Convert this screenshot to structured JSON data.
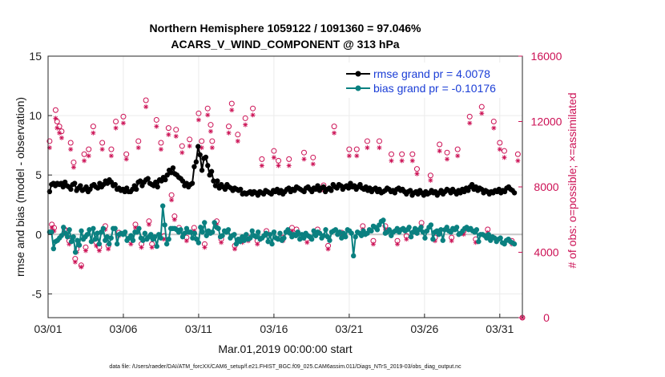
{
  "chart_data": {
    "type": "line",
    "title": "Northern Hemisphere 1059122 / 1091360 = 97.046%",
    "subtitle": "ACARS_V_WIND_COMPONENT @ 313 hPa",
    "xlabel": "Mar.01,2019 00:00:00 start",
    "ylabel": "rmse and bias (model - observation)",
    "ylabel_right": "# of obs: o=possible; ×=assimilated",
    "x_ticks": [
      "03/01",
      "03/06",
      "03/11",
      "03/16",
      "03/21",
      "03/26",
      "03/31"
    ],
    "y_ticks": [
      "15",
      "10",
      "5",
      "0",
      "-5"
    ],
    "y_right_ticks": [
      "16000",
      "12000",
      "8000",
      "4000",
      "0"
    ],
    "ylim": [
      -7,
      15
    ],
    "ylim_right": [
      0,
      16000
    ],
    "xlim": [
      0,
      31.5
    ],
    "legend": [
      "rmse grand pr = 4.0078",
      "bias grand pr = -0.10176"
    ],
    "footnote": "data file: /Users/raeder/DAI/ATM_forcXX/CAM6_setup/f.e21.FHIST_BGC.f09_025.CAM6assim.011/Diags_NTrS_2019-03/obs_diag_output.nc",
    "colors": {
      "rmse": "#000000",
      "bias": "#0a8080",
      "obs": "#cc1155",
      "zero_line": "#c8c8c8",
      "grid": "#ebebeb"
    },
    "series": [
      {
        "name": "rmse",
        "values": [
          3.6,
          4.2,
          4.3,
          4.1,
          4.3,
          4.2,
          4.3,
          4.0,
          4.4,
          4.1,
          4.0,
          3.8,
          4.2,
          4.3,
          3.7,
          3.9,
          4.1,
          3.7,
          3.8,
          4.0,
          3.6,
          3.8,
          4.1,
          4.2,
          4.0,
          3.9,
          4.3,
          4.0,
          4.2,
          4.5,
          4.3,
          4.6,
          4.4,
          4.1,
          4.2,
          3.8,
          3.9,
          3.7,
          3.8,
          3.6,
          3.9,
          3.6,
          3.6,
          3.8,
          4.1,
          3.8,
          4.4,
          4.5,
          4.1,
          4.4,
          4.6,
          4.7,
          4.3,
          4.2,
          4.1,
          4.4,
          4.0,
          4.6,
          4.5,
          4.8,
          4.6,
          5.0,
          5.4,
          5.2,
          5.6,
          5.1,
          5.0,
          4.8,
          4.7,
          4.5,
          4.1,
          4.3,
          4.0,
          4.2,
          4.3,
          5.7,
          6.1,
          7.4,
          6.7,
          5.4,
          6.4,
          6.5,
          5.8,
          5.0,
          5.3,
          4.5,
          4.1,
          4.5,
          3.9,
          4.2,
          4.0,
          3.8,
          4.2,
          4.0,
          3.9,
          3.7,
          3.9,
          3.8,
          3.7,
          3.8,
          3.4,
          3.5,
          3.4,
          3.5,
          3.6,
          3.4,
          3.6,
          3.5,
          3.3,
          3.6,
          3.5,
          3.4,
          3.7,
          3.6,
          3.5,
          3.4,
          3.7,
          3.6,
          3.8,
          3.5,
          3.7,
          3.4,
          3.6,
          3.8,
          3.9,
          3.6,
          3.8,
          3.7,
          4.0,
          3.9,
          3.8,
          3.7,
          3.6,
          3.9,
          4.0,
          3.8,
          3.6,
          3.9,
          3.8,
          4.1,
          3.7,
          3.9,
          4.0,
          3.6,
          3.8,
          3.9,
          3.7,
          4.2,
          4.0,
          3.9,
          4.2,
          4.1,
          3.8,
          4.0,
          4.1,
          3.9,
          4.3,
          4.0,
          4.1,
          3.8,
          4.0,
          4.2,
          3.9,
          3.8,
          4.0,
          3.7,
          3.9,
          3.6,
          3.8,
          3.9,
          3.6,
          3.8,
          3.5,
          3.6,
          3.7,
          3.9,
          3.8,
          3.6,
          3.7,
          3.5,
          3.8,
          3.9,
          3.7,
          3.8,
          3.6,
          3.4,
          3.6,
          3.7,
          3.3,
          3.5,
          3.6,
          3.4,
          3.7,
          3.5,
          3.3,
          3.6,
          3.4,
          3.5,
          3.7,
          3.5,
          3.6,
          3.3,
          3.5,
          3.7,
          3.4,
          3.6,
          3.8,
          3.7,
          3.5,
          3.8,
          3.6,
          3.4,
          3.7,
          3.5,
          3.8,
          3.6,
          3.9,
          3.7,
          4.0,
          4.2,
          3.8,
          4.0,
          3.7,
          3.9,
          3.8,
          3.5,
          3.7,
          3.6,
          3.4,
          3.6,
          3.5,
          3.7,
          3.6,
          3.8,
          3.5,
          3.7,
          3.6,
          3.9,
          4.0,
          3.8,
          3.7,
          3.5
        ]
      },
      {
        "name": "bias",
        "values": [
          0.2,
          0.2,
          -1.2,
          -0.6,
          -0.5,
          -0.3,
          -0.1,
          0.6,
          0.1,
          -0.2,
          0.4,
          -0.6,
          -0.2,
          -1.5,
          -0.5,
          -0.9,
          0.3,
          -0.4,
          -0.2,
          0.0,
          0.4,
          -0.6,
          0.5,
          -0.4,
          0.1,
          -0.8,
          0.2,
          0.5,
          -0.5,
          -0.2,
          -0.8,
          -0.3,
          0.5,
          0.5,
          -0.8,
          0.0,
          0.1,
          0.0,
          0.2,
          -0.5,
          -0.3,
          -0.1,
          -0.5,
          0.2,
          0.2,
          0.5,
          -0.3,
          -0.5,
          0.1,
          -0.4,
          -0.2,
          0.0,
          -0.4,
          -0.2,
          -1.0,
          0.0,
          -0.3,
          2.4,
          0.8,
          -0.8,
          -0.4,
          0.5,
          0.5,
          0.5,
          0.4,
          0.2,
          0.4,
          -0.2,
          0.1,
          0.5,
          0.2,
          0.2,
          -0.3,
          0.1,
          -0.4,
          -0.7,
          0.6,
          0.2,
          1.0,
          -0.1,
          0.3,
          0.1,
          0.2,
          1.0,
          0.6,
          0.5,
          -0.2,
          -0.1,
          0.3,
          0.2,
          0.4,
          -0.3,
          -0.1,
          0.0,
          -0.8,
          -0.4,
          -0.6,
          -0.2,
          -0.5,
          0.0,
          -0.4,
          -0.3,
          0.3,
          -0.1,
          -0.2,
          0.2,
          -0.4,
          -0.3,
          -0.1,
          0.1,
          -0.6,
          0.0,
          -0.8,
          0.2,
          -0.3,
          -0.4,
          0.1,
          -0.5,
          -0.3,
          0.2,
          0.4,
          0.1,
          -0.2,
          0.0,
          -0.1,
          0.2,
          -0.4,
          0.0,
          -0.3,
          0.1,
          -0.1,
          -0.2,
          -0.4,
          0.3,
          -0.1,
          0.2,
          0.1,
          -0.3,
          -0.1,
          0.4,
          -0.2,
          -0.5,
          0.2,
          0.3,
          0.4,
          0.0,
          0.2,
          -0.3,
          0.1,
          -0.2,
          0.4,
          0.3,
          0.1,
          -1.8,
          -0.2,
          0.2,
          0.1,
          -0.1,
          0.3,
          0.0,
          0.1,
          0.4,
          0.3,
          0.7,
          0.6,
          0.4,
          0.8,
          1.1,
          1.2,
          0.1,
          0.2,
          0.4,
          -0.1,
          0.2,
          0.3,
          0.5,
          0.2,
          0.4,
          0.5,
          0.3,
          0.4,
          0.6,
          -0.2,
          0.2,
          0.5,
          0.1,
          0.4,
          0.6,
          0.2,
          -0.3,
          0.3,
          0.6,
          0.8,
          -0.4,
          0.2,
          0.3,
          0.0,
          0.4,
          -0.5,
          0.4,
          0.6,
          0.3,
          0.2,
          0.5,
          0.4,
          0.6,
          0.0,
          0.1,
          0.3,
          0.5,
          0.6,
          0.4,
          0.5,
          0.3,
          0.2,
          0.4,
          -0.6,
          0.0,
          0.0,
          -0.1,
          -0.3,
          0.0,
          -0.5,
          -0.2,
          -0.3,
          -0.6,
          -0.4,
          -0.3,
          -0.7,
          -0.8,
          -0.5,
          -0.4,
          -0.6,
          -0.7,
          -0.8
        ]
      }
    ],
    "obs_possible": [
      [
        0.1,
        10800
      ],
      [
        0.25,
        5700
      ],
      [
        0.4,
        5500
      ],
      [
        0.5,
        12700
      ],
      [
        0.6,
        12000
      ],
      [
        0.75,
        11700
      ],
      [
        0.9,
        11400
      ],
      [
        1.1,
        5400
      ],
      [
        1.2,
        5300
      ],
      [
        1.4,
        4700
      ],
      [
        1.5,
        10700
      ],
      [
        1.7,
        9500
      ],
      [
        1.8,
        3600
      ],
      [
        1.9,
        4200
      ],
      [
        2.2,
        3200
      ],
      [
        2.4,
        10000
      ],
      [
        2.5,
        4300
      ],
      [
        2.7,
        10300
      ],
      [
        3.0,
        11700
      ],
      [
        3.2,
        4600
      ],
      [
        3.4,
        4300
      ],
      [
        3.6,
        10700
      ],
      [
        3.8,
        5600
      ],
      [
        4.0,
        4400
      ],
      [
        4.2,
        10300
      ],
      [
        4.5,
        12000
      ],
      [
        4.7,
        5200
      ],
      [
        5.0,
        12300
      ],
      [
        5.2,
        10000
      ],
      [
        5.5,
        4700
      ],
      [
        5.8,
        5700
      ],
      [
        6.0,
        10800
      ],
      [
        6.2,
        4500
      ],
      [
        6.5,
        13300
      ],
      [
        6.7,
        5900
      ],
      [
        6.9,
        4500
      ],
      [
        7.2,
        12100
      ],
      [
        7.5,
        10700
      ],
      [
        7.7,
        5000
      ],
      [
        8.0,
        11600
      ],
      [
        8.2,
        7500
      ],
      [
        8.4,
        6200
      ],
      [
        8.5,
        11500
      ],
      [
        8.7,
        5500
      ],
      [
        8.9,
        10500
      ],
      [
        9.2,
        4900
      ],
      [
        9.4,
        10900
      ],
      [
        9.7,
        5500
      ],
      [
        10.0,
        12500
      ],
      [
        10.2,
        10800
      ],
      [
        10.4,
        4500
      ],
      [
        10.6,
        12800
      ],
      [
        10.8,
        11800
      ],
      [
        10.9,
        10800
      ],
      [
        11.2,
        5900
      ],
      [
        11.5,
        4800
      ],
      [
        12.0,
        11700
      ],
      [
        12.2,
        13100
      ],
      [
        12.4,
        4400
      ],
      [
        12.6,
        11200
      ],
      [
        12.9,
        4800
      ],
      [
        13.1,
        12200
      ],
      [
        13.3,
        4900
      ],
      [
        13.6,
        12800
      ],
      [
        13.9,
        4700
      ],
      [
        14.2,
        9700
      ],
      [
        14.5,
        5300
      ],
      [
        15.0,
        10200
      ],
      [
        15.3,
        9600
      ],
      [
        15.6,
        4900
      ],
      [
        16.0,
        9700
      ],
      [
        16.2,
        5500
      ],
      [
        16.5,
        5400
      ],
      [
        17.0,
        10100
      ],
      [
        17.2,
        4800
      ],
      [
        17.6,
        9800
      ],
      [
        17.9,
        5400
      ],
      [
        18.3,
        8100
      ],
      [
        18.6,
        4400
      ],
      [
        19.0,
        11700
      ],
      [
        19.5,
        5200
      ],
      [
        20.0,
        10300
      ],
      [
        20.5,
        10300
      ],
      [
        20.9,
        5600
      ],
      [
        21.2,
        10800
      ],
      [
        21.6,
        4700
      ],
      [
        22.0,
        10800
      ],
      [
        22.4,
        5600
      ],
      [
        22.8,
        10000
      ],
      [
        23.2,
        4700
      ],
      [
        23.5,
        10000
      ],
      [
        23.8,
        5000
      ],
      [
        24.2,
        10000
      ],
      [
        24.5,
        9100
      ],
      [
        24.8,
        5800
      ],
      [
        25.4,
        8700
      ],
      [
        25.7,
        4900
      ],
      [
        26.0,
        10600
      ],
      [
        26.5,
        10100
      ],
      [
        26.8,
        4900
      ],
      [
        27.2,
        10300
      ],
      [
        27.6,
        5300
      ],
      [
        28.0,
        12300
      ],
      [
        28.4,
        4800
      ],
      [
        28.8,
        12900
      ],
      [
        29.2,
        5400
      ],
      [
        29.6,
        12000
      ],
      [
        30.0,
        10700
      ],
      [
        30.3,
        10200
      ],
      [
        30.8,
        4700
      ],
      [
        31.2,
        10000
      ],
      [
        31.5,
        0
      ]
    ],
    "obs_assimilated": [
      [
        0.1,
        10400
      ],
      [
        0.25,
        5500
      ],
      [
        0.4,
        5300
      ],
      [
        0.5,
        12200
      ],
      [
        0.6,
        11600
      ],
      [
        0.75,
        11300
      ],
      [
        0.9,
        11000
      ],
      [
        1.1,
        5200
      ],
      [
        1.2,
        5100
      ],
      [
        1.4,
        4500
      ],
      [
        1.5,
        10300
      ],
      [
        1.7,
        9200
      ],
      [
        1.8,
        3400
      ],
      [
        1.9,
        4000
      ],
      [
        2.2,
        3100
      ],
      [
        2.4,
        9600
      ],
      [
        2.5,
        4100
      ],
      [
        2.7,
        9900
      ],
      [
        3.0,
        11300
      ],
      [
        3.2,
        4400
      ],
      [
        3.4,
        4100
      ],
      [
        3.6,
        10300
      ],
      [
        3.8,
        5400
      ],
      [
        4.0,
        4200
      ],
      [
        4.2,
        9900
      ],
      [
        4.5,
        11600
      ],
      [
        4.7,
        5000
      ],
      [
        5.0,
        11900
      ],
      [
        5.2,
        9700
      ],
      [
        5.5,
        4500
      ],
      [
        5.8,
        5500
      ],
      [
        6.0,
        10400
      ],
      [
        6.2,
        4300
      ],
      [
        6.5,
        12900
      ],
      [
        6.7,
        5700
      ],
      [
        6.9,
        4300
      ],
      [
        7.2,
        11700
      ],
      [
        7.5,
        10300
      ],
      [
        7.7,
        4800
      ],
      [
        8.0,
        11200
      ],
      [
        8.2,
        7200
      ],
      [
        8.4,
        6000
      ],
      [
        8.5,
        11100
      ],
      [
        8.7,
        5300
      ],
      [
        8.9,
        10100
      ],
      [
        9.2,
        4700
      ],
      [
        9.4,
        10500
      ],
      [
        9.7,
        5300
      ],
      [
        10.0,
        12100
      ],
      [
        10.2,
        10400
      ],
      [
        10.4,
        4300
      ],
      [
        10.6,
        12400
      ],
      [
        10.8,
        11400
      ],
      [
        10.9,
        10400
      ],
      [
        11.2,
        5700
      ],
      [
        11.5,
        4600
      ],
      [
        12.0,
        11300
      ],
      [
        12.2,
        12700
      ],
      [
        12.4,
        4200
      ],
      [
        12.6,
        10800
      ],
      [
        12.9,
        4600
      ],
      [
        13.1,
        11800
      ],
      [
        13.3,
        4700
      ],
      [
        13.6,
        12400
      ],
      [
        13.9,
        4500
      ],
      [
        14.2,
        9300
      ],
      [
        14.5,
        5100
      ],
      [
        15.0,
        9800
      ],
      [
        15.3,
        9300
      ],
      [
        15.6,
        4700
      ],
      [
        16.0,
        9300
      ],
      [
        16.2,
        5300
      ],
      [
        16.5,
        5200
      ],
      [
        17.0,
        9700
      ],
      [
        17.2,
        4600
      ],
      [
        17.6,
        9400
      ],
      [
        17.9,
        5200
      ],
      [
        18.3,
        7800
      ],
      [
        18.6,
        4200
      ],
      [
        19.0,
        11300
      ],
      [
        19.5,
        5000
      ],
      [
        20.0,
        9900
      ],
      [
        20.5,
        9900
      ],
      [
        20.9,
        5400
      ],
      [
        21.2,
        10400
      ],
      [
        21.6,
        4500
      ],
      [
        22.0,
        10400
      ],
      [
        22.4,
        5400
      ],
      [
        22.8,
        9600
      ],
      [
        23.2,
        4500
      ],
      [
        23.5,
        9600
      ],
      [
        23.8,
        4800
      ],
      [
        24.2,
        9600
      ],
      [
        24.5,
        8800
      ],
      [
        24.8,
        5600
      ],
      [
        25.4,
        8400
      ],
      [
        25.7,
        4700
      ],
      [
        26.0,
        10200
      ],
      [
        26.5,
        9700
      ],
      [
        26.8,
        4700
      ],
      [
        27.2,
        9900
      ],
      [
        27.6,
        5100
      ],
      [
        28.0,
        11900
      ],
      [
        28.4,
        4600
      ],
      [
        28.8,
        12500
      ],
      [
        29.2,
        5200
      ],
      [
        29.6,
        11600
      ],
      [
        30.0,
        10300
      ],
      [
        30.3,
        9800
      ],
      [
        30.8,
        4500
      ],
      [
        31.2,
        9600
      ],
      [
        31.5,
        0
      ]
    ]
  }
}
